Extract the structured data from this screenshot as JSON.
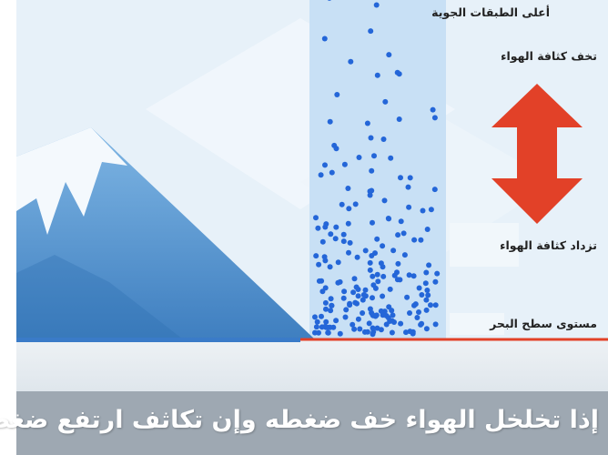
{
  "labels": {
    "upper_atmosphere": "أعلى الطبقات الجوية",
    "density_decreases": "تخف كثافة الهواء",
    "density_increases": "تزداد كثافة الهواء",
    "sea_level": "مستوى سطح البحر"
  },
  "caption": "إذا تخلخل الهواء خف ضغطه وإن تكاثف ارتفع ضغطه",
  "colors": {
    "sky": "#e7f1f9",
    "column": "#c8e0f5",
    "molecule": "#2466d8",
    "arrow": "#e24128",
    "ground_line": "#e24128",
    "mountain": "#5a9ad4",
    "snow": "#f4f9fd",
    "caption_bar": "#9ea8b2"
  }
}
